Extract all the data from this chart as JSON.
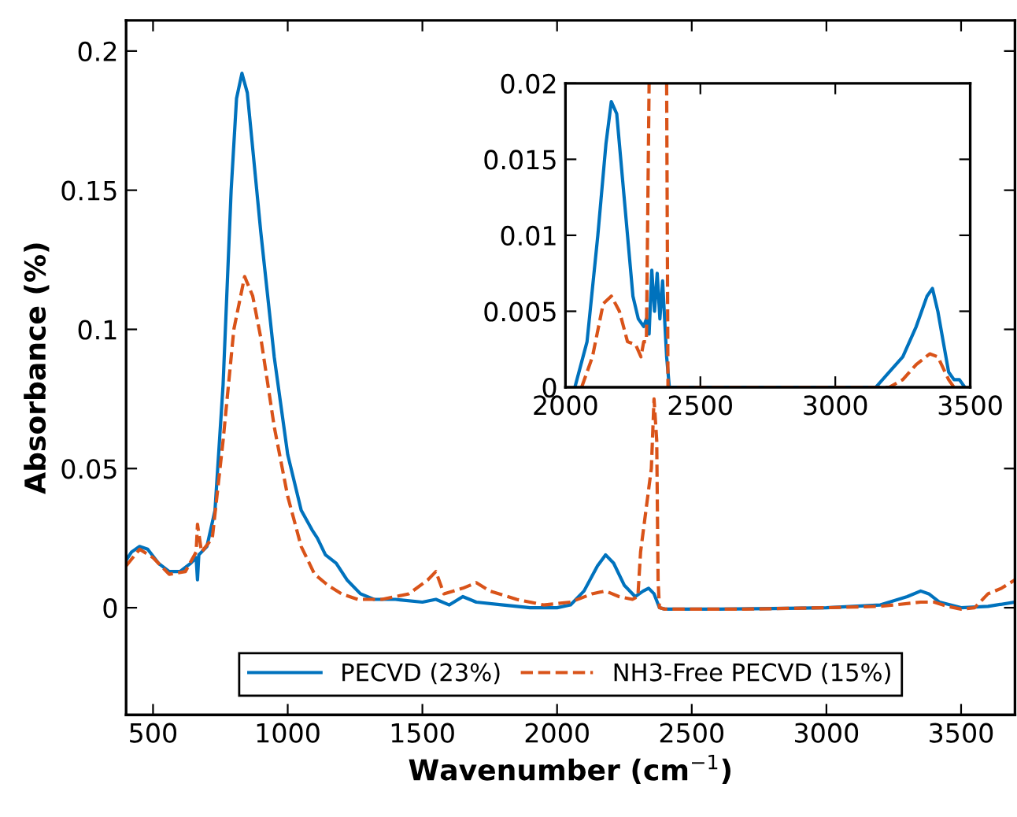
{
  "chart_data": [
    {
      "type": "line",
      "xlabel": "Wavenumber (cm$^{−1}$)",
      "ylabel": "Absorbance (%)",
      "xlim": [
        400,
        3700
      ],
      "ylim": [
        -0.0385,
        0.211
      ],
      "xticks": [
        500,
        1000,
        1500,
        2000,
        2500,
        3000,
        3500
      ],
      "yticks": [
        0,
        0.05,
        0.1,
        0.15,
        0.2
      ],
      "grid": false,
      "legend": "bottom",
      "marker": "none",
      "series": [
        {
          "name": "PECVD (23%)",
          "color": "#0072bd",
          "line_style": "solid",
          "x": [
            400,
            420,
            450,
            480,
            520,
            560,
            600,
            640,
            660,
            665,
            670,
            700,
            730,
            760,
            790,
            810,
            830,
            850,
            870,
            900,
            950,
            1000,
            1050,
            1090,
            1110,
            1140,
            1180,
            1220,
            1270,
            1320,
            1400,
            1500,
            1550,
            1600,
            1650,
            1700,
            1800,
            1900,
            2000,
            2050,
            2100,
            2150,
            2180,
            2210,
            2250,
            2290,
            2320,
            2340,
            2360,
            2380,
            2400,
            2600,
            2800,
            3000,
            3200,
            3300,
            3350,
            3380,
            3420,
            3500,
            3600,
            3700
          ],
          "values": [
            0.017,
            0.02,
            0.022,
            0.021,
            0.016,
            0.013,
            0.013,
            0.016,
            0.018,
            0.01,
            0.019,
            0.022,
            0.035,
            0.08,
            0.15,
            0.183,
            0.192,
            0.185,
            0.165,
            0.135,
            0.09,
            0.055,
            0.035,
            0.028,
            0.025,
            0.019,
            0.016,
            0.01,
            0.005,
            0.003,
            0.003,
            0.002,
            0.003,
            0.001,
            0.004,
            0.002,
            0.001,
            0.0,
            0.0,
            0.001,
            0.006,
            0.015,
            0.019,
            0.016,
            0.008,
            0.004,
            0.006,
            0.007,
            0.005,
            0.0,
            -0.0005,
            -0.0005,
            -0.0003,
            0.0,
            0.001,
            0.004,
            0.006,
            0.005,
            0.002,
            0.0,
            0.0005,
            0.002
          ]
        },
        {
          "name": "NH3-Free PECVD (15%)",
          "color": "#d95319",
          "line_style": "dashed",
          "x": [
            400,
            450,
            500,
            560,
            620,
            660,
            665,
            680,
            720,
            760,
            800,
            840,
            870,
            900,
            950,
            1000,
            1050,
            1100,
            1150,
            1200,
            1260,
            1350,
            1450,
            1520,
            1550,
            1580,
            1650,
            1700,
            1750,
            1850,
            1950,
            2050,
            2130,
            2180,
            2230,
            2280,
            2300,
            2310,
            2330,
            2350,
            2360,
            2370,
            2375,
            2380,
            2400,
            2700,
            3000,
            3200,
            3350,
            3400,
            3450,
            3500,
            3550,
            3600,
            3650,
            3700
          ],
          "values": [
            0.015,
            0.021,
            0.018,
            0.012,
            0.013,
            0.02,
            0.03,
            0.02,
            0.025,
            0.06,
            0.1,
            0.119,
            0.112,
            0.097,
            0.065,
            0.04,
            0.022,
            0.012,
            0.008,
            0.005,
            0.003,
            0.003,
            0.005,
            0.01,
            0.013,
            0.005,
            0.007,
            0.009,
            0.006,
            0.003,
            0.001,
            0.002,
            0.005,
            0.006,
            0.004,
            0.003,
            0.004,
            0.02,
            0.035,
            0.05,
            0.075,
            0.06,
            0.01,
            0.0,
            -0.0005,
            -0.0005,
            0.0,
            0.0005,
            0.002,
            0.002,
            0.0005,
            -0.0005,
            0.0,
            0.005,
            0.007,
            0.01
          ]
        }
      ]
    },
    {
      "type": "line",
      "xlim": [
        2000,
        3500
      ],
      "ylim": [
        0,
        0.02
      ],
      "xticks": [
        2000,
        2500,
        3000,
        3500
      ],
      "yticks": [
        0,
        0.005,
        0.01,
        0.015,
        0.02
      ],
      "grid": false,
      "marker": "none",
      "series": [
        {
          "color": "#0072bd",
          "line_style": "solid",
          "x": [
            2035,
            2080,
            2120,
            2150,
            2170,
            2190,
            2220,
            2250,
            2270,
            2290,
            2300,
            2310,
            2320,
            2330,
            2340,
            2350,
            2360,
            2375,
            2385,
            3150,
            3200,
            3250,
            3300,
            3340,
            3360,
            3380,
            3400,
            3420,
            3440,
            3460,
            3480
          ],
          "values": [
            0,
            0.003,
            0.01,
            0.016,
            0.0188,
            0.018,
            0.012,
            0.006,
            0.0045,
            0.004,
            0.0045,
            0.0035,
            0.0077,
            0.005,
            0.0075,
            0.0045,
            0.007,
            0.002,
            0.0,
            0.0,
            0.001,
            0.002,
            0.004,
            0.006,
            0.0065,
            0.005,
            0.003,
            0.001,
            0.0005,
            0.0005,
            0.0
          ]
        },
        {
          "color": "#d95319",
          "line_style": "dashed",
          "x": [
            2060,
            2100,
            2140,
            2170,
            2200,
            2230,
            2260,
            2280,
            2290,
            2300,
            2310,
            2340,
            2375,
            2380,
            3200,
            3250,
            3300,
            3350,
            3380,
            3420,
            3440
          ],
          "values": [
            0,
            0.002,
            0.0055,
            0.006,
            0.005,
            0.003,
            0.0028,
            0.002,
            0.003,
            0.003,
            0.02,
            null,
            0.02,
            0.0,
            0.0,
            0.0005,
            0.0015,
            0.0022,
            0.002,
            0.0005,
            0.0
          ]
        }
      ]
    }
  ]
}
